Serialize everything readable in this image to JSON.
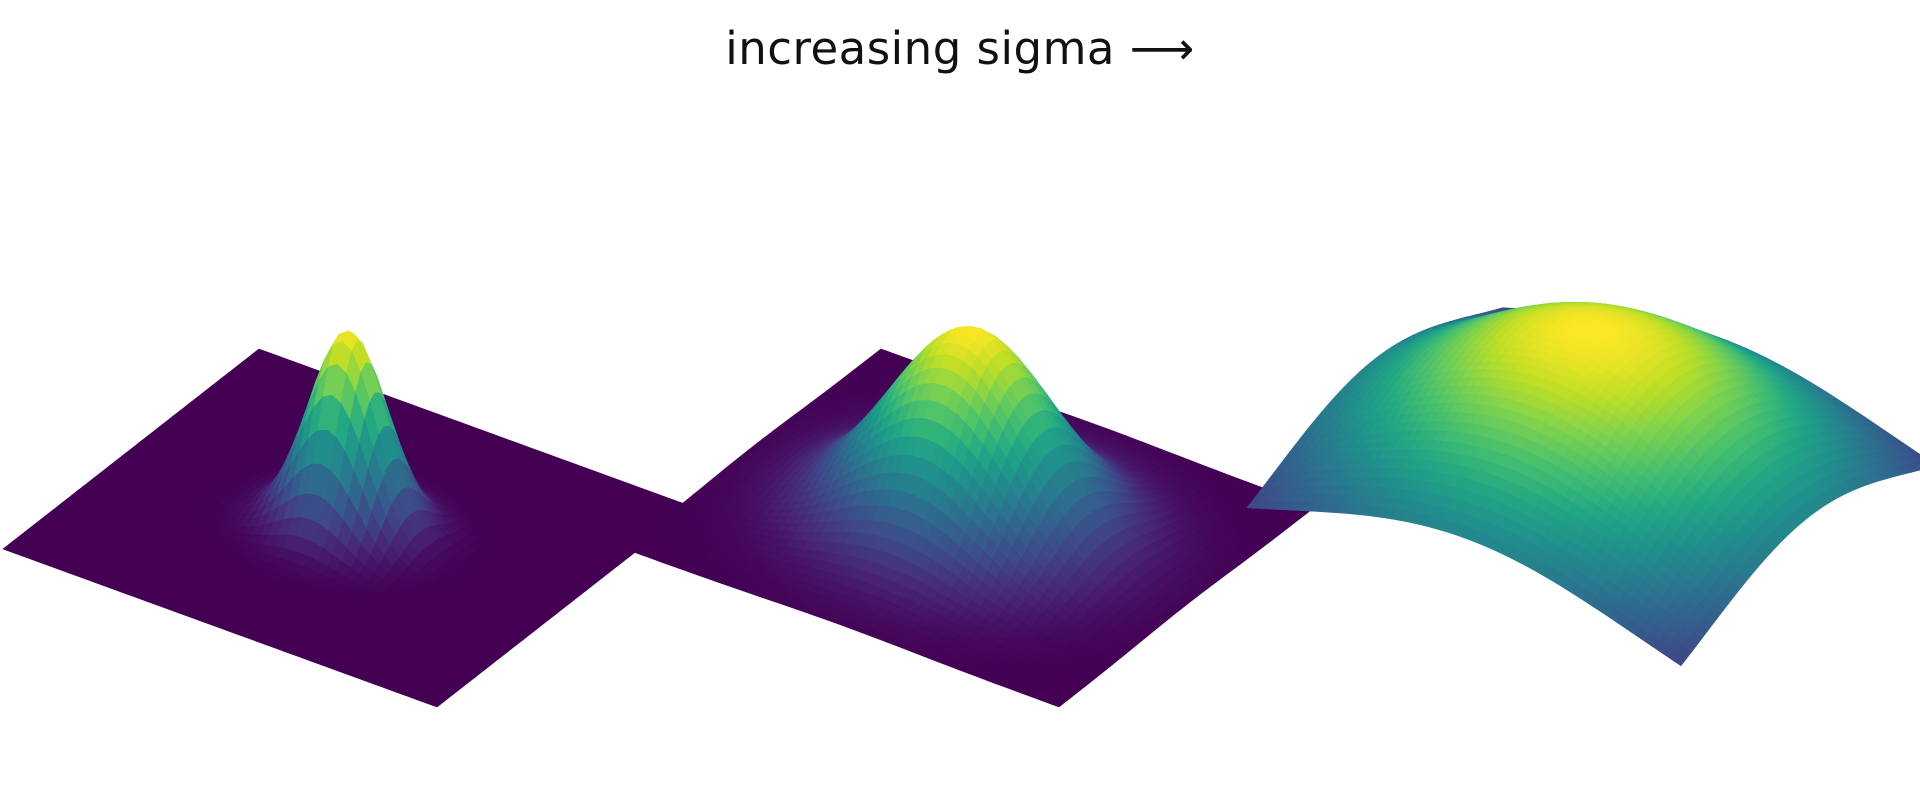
{
  "figure": {
    "title": "increasing sigma ⟶"
  },
  "chart_data": [
    {
      "type": "surface",
      "title": "",
      "function": "2D gaussian",
      "sigma_rank": 1,
      "peak": 1.0,
      "colormap": "viridis",
      "axes_visible": false
    },
    {
      "type": "surface",
      "title": "",
      "function": "2D gaussian",
      "sigma_rank": 2,
      "peak": 1.0,
      "colormap": "viridis",
      "axes_visible": false
    },
    {
      "type": "surface",
      "title": "",
      "function": "2D gaussian",
      "sigma_rank": 3,
      "peak": 1.0,
      "colormap": "viridis",
      "axes_visible": false
    }
  ]
}
